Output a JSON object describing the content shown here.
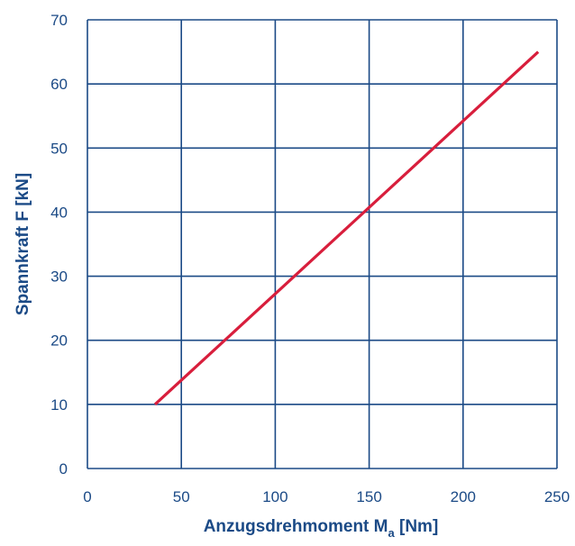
{
  "chart_data": {
    "type": "line",
    "title": "",
    "xlabel": "Anzugsdrehmoment M",
    "xlabel_subscript": "a",
    "xlabel_unit": " [Nm]",
    "ylabel": "Spannkraft F [kN]",
    "xlim": [
      0,
      250
    ],
    "ylim": [
      0,
      70
    ],
    "xticks": [
      0,
      50,
      100,
      150,
      200,
      250
    ],
    "yticks": [
      0,
      10,
      20,
      30,
      40,
      50,
      60,
      70
    ],
    "xtick_labels": [
      "0",
      "50",
      "100",
      "150",
      "200",
      "250"
    ],
    "ytick_labels": [
      "0",
      "10",
      "20",
      "30",
      "40",
      "50",
      "60",
      "70"
    ],
    "grid": true,
    "series": [
      {
        "x": [
          36,
          240
        ],
        "y": [
          10,
          65
        ],
        "color": "#d81e3c"
      }
    ],
    "colors": {
      "grid": "#1b4a86",
      "text": "#1b4a86",
      "line": "#d81e3c"
    }
  }
}
